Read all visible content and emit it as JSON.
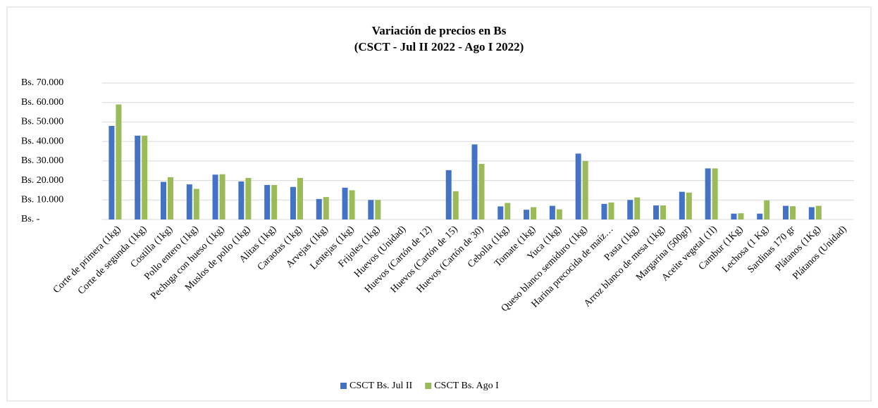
{
  "chart_data": {
    "type": "bar",
    "title": "Variación de precios en Bs",
    "subtitle": "(CSCT - Jul II  2022 - Ago I 2022)",
    "categories": [
      "Corte de primera (1kg)",
      "Corte de segunda (1kg)",
      "Costilla (1kg)",
      "Pollo entero (1kg)",
      "Pechuga con hueso (1kg)",
      "Muslos de pollo (1kg)",
      "Alitas (1kg)",
      "Caraotas (1kg)",
      "Arvejas (1kg)",
      "Lentejas (1kg)",
      "Frijoles (1kg)",
      "Huevos (Unidad)",
      "Huevos (Cartón de 12)",
      "Huevos (Cartón de 15)",
      "Huevos (Cartón de 30)",
      "Cebolla (1kg)",
      "Tomate (1kg)",
      "Yuca (1kg)",
      "Queso blanco semiduro (1kg)",
      "Harina precocida de maíz…",
      "Pasta (1kg)",
      "Arroz blanco de mesa (1kg)",
      "Margarina (500gr)",
      "Aceite vegetal (1l)",
      "Cambur (1Kg)",
      "Lechosa (1 Kg)",
      "Sardinas 170 gr",
      "Plátanos (1Kg)",
      "Plátanos (Unidad)"
    ],
    "series": [
      {
        "name": "CSCT Bs. Jul II",
        "color": "#4472c4",
        "values": [
          48000,
          43000,
          19300,
          18000,
          23000,
          19500,
          17700,
          16700,
          10500,
          16300,
          10000,
          null,
          null,
          25300,
          38500,
          6700,
          5000,
          7000,
          33800,
          8000,
          10000,
          7200,
          14200,
          26200,
          3000,
          3000,
          7000,
          6300,
          null
        ]
      },
      {
        "name": "CSCT Bs. Ago I",
        "color": "#9bbb59",
        "values": [
          59000,
          43000,
          21700,
          15700,
          23200,
          21300,
          17700,
          21300,
          11500,
          15000,
          10000,
          null,
          null,
          14500,
          28500,
          8500,
          6300,
          5200,
          30000,
          8700,
          11300,
          7200,
          13800,
          26200,
          3200,
          9800,
          6800,
          7000,
          null
        ]
      }
    ],
    "ylim": [
      0,
      70000
    ],
    "yticks": [
      {
        "value": 0,
        "label": "Bs. -"
      },
      {
        "value": 10000,
        "label": "Bs. 10.000"
      },
      {
        "value": 20000,
        "label": "Bs. 20.000"
      },
      {
        "value": 30000,
        "label": "Bs. 30.000"
      },
      {
        "value": 40000,
        "label": "Bs. 40.000"
      },
      {
        "value": 50000,
        "label": "Bs. 50.000"
      },
      {
        "value": 60000,
        "label": "Bs. 60.000"
      },
      {
        "value": 70000,
        "label": "Bs. 70.000"
      }
    ],
    "grid": true,
    "legend": "bottom"
  }
}
